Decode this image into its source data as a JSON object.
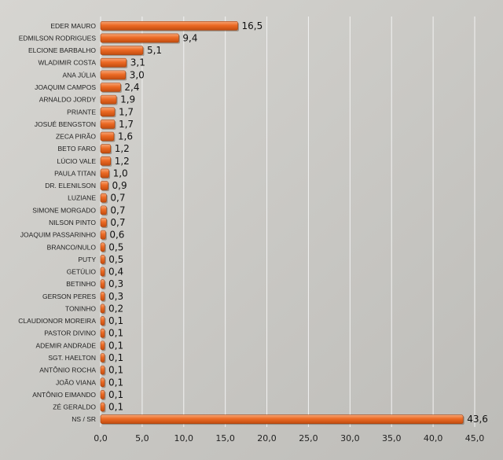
{
  "chart_data": {
    "type": "bar",
    "orientation": "horizontal",
    "title": "",
    "xlabel": "",
    "ylabel": "",
    "xlim": [
      0,
      45
    ],
    "xticks": [
      "0,0",
      "5,0",
      "10,0",
      "15,0",
      "20,0",
      "25,0",
      "30,0",
      "35,0",
      "40,0",
      "45,0"
    ],
    "grid": true,
    "bar_color": "#e8641e",
    "background_color": "#c9c8c4",
    "categories": [
      "EDER MAURO",
      "EDMILSON RODRIGUES",
      "ELCIONE BARBALHO",
      "WLADIMIR COSTA",
      "ANA JÚLIA",
      "JOAQUIM CAMPOS",
      "ARNALDO JORDY",
      "PRIANTE",
      "JOSUÉ BENGSTON",
      "ZECA PIRÃO",
      "BETO FARO",
      "LÚCIO VALE",
      "PAULA TITAN",
      "DR. ELENILSON",
      "LUZIANE",
      "SIMONE MORGADO",
      "NILSON PINTO",
      "JOAQUIM PASSARINHO",
      "BRANCO/NULO",
      "PUTY",
      "GETÚLIO",
      "BETINHO",
      "GERSON PERES",
      "TONINHO",
      "CLAUDIONOR MOREIRA",
      "PASTOR DIVINO",
      "ADEMIR ANDRADE",
      "SGT. HAELTON",
      "ANTÔNIO ROCHA",
      "JOÃO VIANA",
      "ANTÔNIO EIMANDO",
      "ZÉ GERALDO",
      "NS / SR"
    ],
    "values": [
      16.5,
      9.4,
      5.1,
      3.1,
      3.0,
      2.4,
      1.9,
      1.7,
      1.7,
      1.6,
      1.2,
      1.2,
      1.0,
      0.9,
      0.7,
      0.7,
      0.7,
      0.6,
      0.5,
      0.5,
      0.4,
      0.3,
      0.3,
      0.2,
      0.1,
      0.1,
      0.1,
      0.1,
      0.1,
      0.1,
      0.1,
      0.1,
      43.6
    ],
    "value_labels": [
      "16,5",
      "9,4",
      "5,1",
      "3,1",
      "3,0",
      "2,4",
      "1,9",
      "1,7",
      "1,7",
      "1,6",
      "1,2",
      "1,2",
      "1,0",
      "0,9",
      "0,7",
      "0,7",
      "0,7",
      "0,6",
      "0,5",
      "0,5",
      "0,4",
      "0,3",
      "0,3",
      "0,2",
      "0,1",
      "0,1",
      "0,1",
      "0,1",
      "0,1",
      "0,1",
      "0,1",
      "0,1",
      "43,6"
    ]
  }
}
